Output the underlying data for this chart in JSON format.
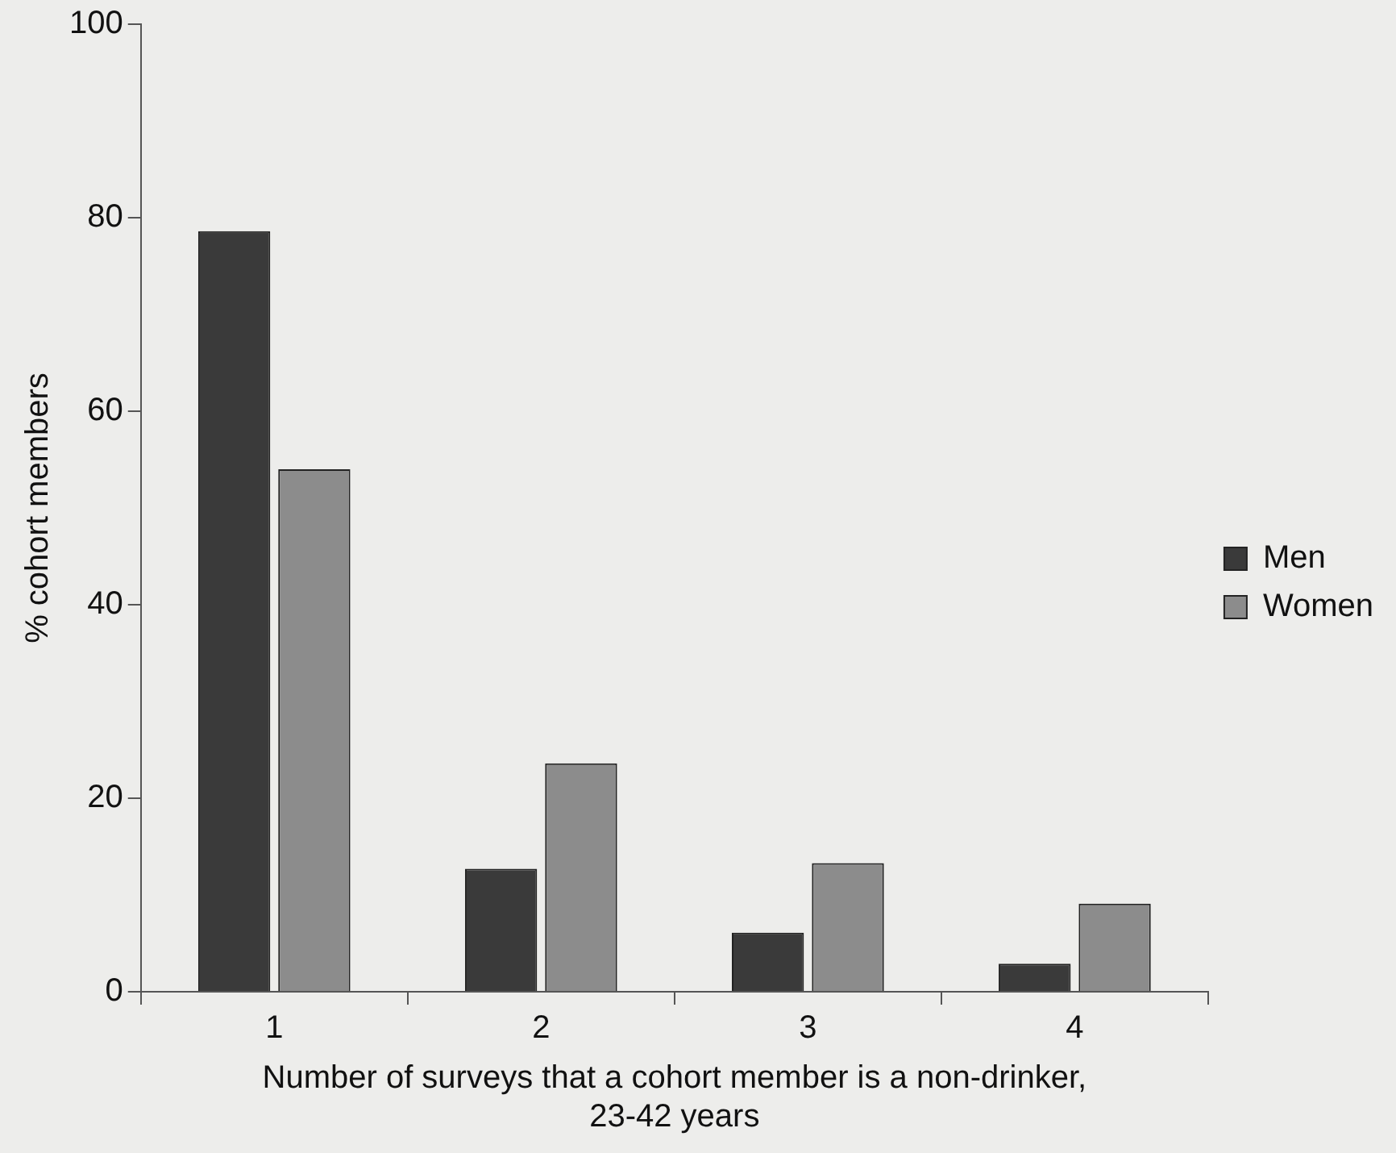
{
  "chart_data": {
    "type": "bar",
    "xlabel": "Number of surveys that a cohort member is a non-drinker, 23-42 years",
    "ylabel": "% cohort members",
    "categories": [
      "1",
      "2",
      "3",
      "4"
    ],
    "series": [
      {
        "name": "Men",
        "color": "#3a3a3a",
        "values": [
          78.6,
          12.7,
          6.1,
          2.9
        ]
      },
      {
        "name": "Women",
        "color": "#8c8c8c",
        "values": [
          54.0,
          23.6,
          13.3,
          9.1
        ]
      }
    ],
    "ylim": [
      0,
      100
    ],
    "yticks": [
      0,
      20,
      40,
      60,
      80,
      100
    ],
    "grid": false,
    "legend": "right"
  }
}
